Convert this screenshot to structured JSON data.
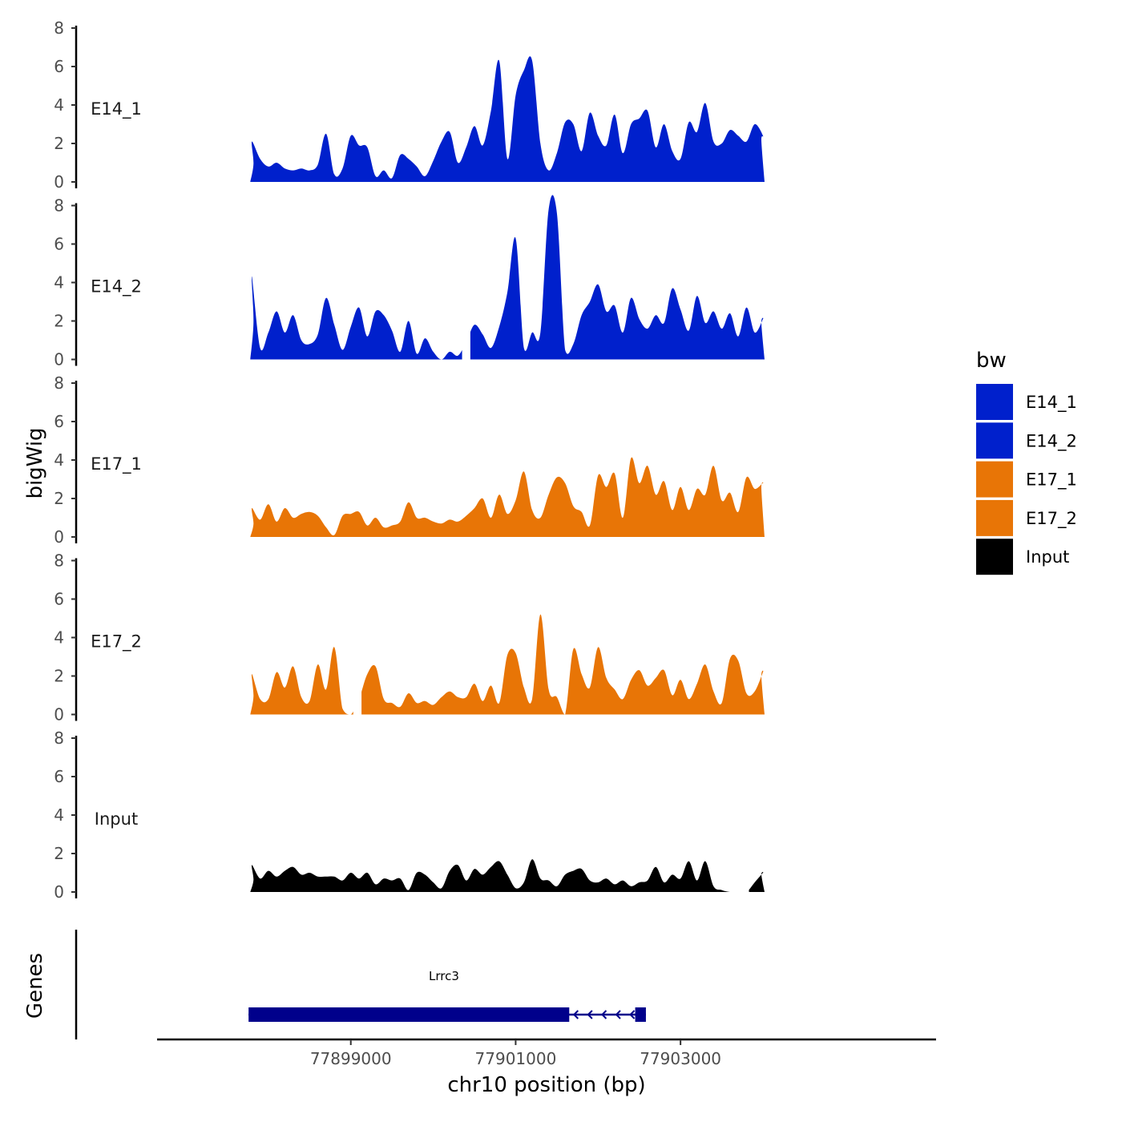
{
  "chart_data": {
    "type": "area",
    "xlabel": "chr10 position (bp)",
    "ylabel": "bigWig",
    "genes_label": "Genes",
    "xlim": [
      77896650,
      77906100
    ],
    "x_ticks": [
      77899000,
      77901000,
      77903000
    ],
    "x_tick_labels": [
      "77899000",
      "77901000",
      "77903000"
    ],
    "ylim": [
      0,
      8
    ],
    "y_ticks": [
      0,
      2,
      4,
      6,
      8
    ],
    "y_tick_labels": [
      "0",
      "2",
      "4",
      "6",
      "8"
    ],
    "legend": {
      "title": "bw",
      "placement": "right",
      "entries": [
        {
          "label": "E14_1",
          "color": "#0020CC"
        },
        {
          "label": "E14_2",
          "color": "#0020CC"
        },
        {
          "label": "E17_1",
          "color": "#E87506"
        },
        {
          "label": "E17_2",
          "color": "#E87506"
        },
        {
          "label": "Input",
          "color": "#000000"
        }
      ]
    },
    "series": [
      {
        "name": "E14_1",
        "color": "#0020CC",
        "x": [
          77897800,
          77897900,
          77898000,
          77898100,
          77898200,
          77898300,
          77898400,
          77898500,
          77898600,
          77898700,
          77898800,
          77898900,
          77899000,
          77899100,
          77899200,
          77899300,
          77899400,
          77899500,
          77899600,
          77899700,
          77899800,
          77899900,
          77900000,
          77900100,
          77900200,
          77900300,
          77900400,
          77900500,
          77900600,
          77900700,
          77900800,
          77900900,
          77901000,
          77901100,
          77901200,
          77901300,
          77901400,
          77901500,
          77901600,
          77901700,
          77901800,
          77901900,
          77902000,
          77902100,
          77902200,
          77902300,
          77902400,
          77902500,
          77902600,
          77902700,
          77902800,
          77902900,
          77903000,
          77903100,
          77903200,
          77903300,
          77903400,
          77903500,
          77903600,
          77903700,
          77903800,
          77903900,
          77904000
        ],
        "values": [
          2.1,
          1.2,
          0.8,
          1.0,
          0.7,
          0.6,
          0.7,
          0.6,
          0.9,
          2.5,
          0.4,
          0.7,
          2.4,
          1.9,
          1.8,
          0.3,
          0.6,
          0.2,
          1.4,
          1.2,
          0.8,
          0.3,
          1.1,
          2.1,
          2.6,
          1.0,
          1.8,
          2.9,
          1.9,
          3.7,
          6.3,
          1.2,
          4.5,
          5.8,
          6.3,
          2.0,
          0.6,
          1.5,
          3.1,
          3.0,
          1.6,
          3.6,
          2.4,
          1.9,
          3.5,
          1.5,
          3.0,
          3.3,
          3.7,
          1.8,
          3.0,
          1.6,
          1.2,
          3.1,
          2.6,
          4.1,
          2.1,
          2.0,
          2.7,
          2.4,
          2.1,
          3.0,
          2.4
        ],
        "gaps": []
      },
      {
        "name": "E14_2",
        "color": "#0020CC",
        "x": [
          77897800,
          77897900,
          77898000,
          77898100,
          77898200,
          77898300,
          77898400,
          77898500,
          77898600,
          77898700,
          77898800,
          77898900,
          77899000,
          77899100,
          77899200,
          77899300,
          77899400,
          77899500,
          77899600,
          77899700,
          77899800,
          77899900,
          77900000,
          77900100,
          77900200,
          77900300,
          77900400,
          77900500,
          77900600,
          77900700,
          77900800,
          77900900,
          77901000,
          77901100,
          77901200,
          77901300,
          77901400,
          77901500,
          77901600,
          77901700,
          77901800,
          77901900,
          77902000,
          77902100,
          77902200,
          77902300,
          77902400,
          77902500,
          77902600,
          77902700,
          77902800,
          77902900,
          77903000,
          77903100,
          77903200,
          77903300,
          77903400,
          77903500,
          77903600,
          77903700,
          77903800,
          77903900,
          77904000
        ],
        "values": [
          4.3,
          0.6,
          1.4,
          2.5,
          1.4,
          2.3,
          1.0,
          0.8,
          1.3,
          3.2,
          1.8,
          0.5,
          1.7,
          2.7,
          1.2,
          2.5,
          2.3,
          1.5,
          0.4,
          2.0,
          0.3,
          1.1,
          0.4,
          0.0,
          0.4,
          0.2,
          0.9,
          1.8,
          1.3,
          0.6,
          1.7,
          3.5,
          6.3,
          0.6,
          1.4,
          1.4,
          7.8,
          7.6,
          0.5,
          0.8,
          2.3,
          3.0,
          3.9,
          2.5,
          2.8,
          1.4,
          3.2,
          2.1,
          1.6,
          2.3,
          1.9,
          3.7,
          2.6,
          1.5,
          3.3,
          1.9,
          2.5,
          1.6,
          2.4,
          1.2,
          2.7,
          1.4,
          2.1
        ],
        "gaps": [
          [
            77900350,
            77900450
          ]
        ]
      },
      {
        "name": "E17_1",
        "color": "#E87506",
        "x": [
          77897800,
          77897900,
          77898000,
          77898100,
          77898200,
          77898300,
          77898400,
          77898500,
          77898600,
          77898700,
          77898800,
          77898900,
          77899000,
          77899100,
          77899200,
          77899300,
          77899400,
          77899500,
          77899600,
          77899700,
          77899800,
          77899900,
          77900000,
          77900100,
          77900200,
          77900300,
          77900400,
          77900500,
          77900600,
          77900700,
          77900800,
          77900900,
          77901000,
          77901100,
          77901200,
          77901300,
          77901400,
          77901500,
          77901600,
          77901700,
          77901800,
          77901900,
          77902000,
          77902100,
          77902200,
          77902300,
          77902400,
          77902500,
          77902600,
          77902700,
          77902800,
          77902900,
          77903000,
          77903100,
          77903200,
          77903300,
          77903400,
          77903500,
          77903600,
          77903700,
          77903800,
          77903900,
          77904000
        ],
        "values": [
          1.5,
          0.9,
          1.7,
          0.8,
          1.5,
          1.0,
          1.2,
          1.3,
          1.1,
          0.5,
          0.1,
          1.1,
          1.2,
          1.3,
          0.6,
          1.0,
          0.5,
          0.6,
          0.8,
          1.8,
          1.0,
          1.0,
          0.8,
          0.7,
          0.9,
          0.8,
          1.1,
          1.5,
          2.0,
          1.0,
          2.2,
          1.2,
          1.9,
          3.4,
          1.4,
          1.0,
          2.2,
          3.1,
          2.8,
          1.6,
          1.3,
          0.6,
          3.2,
          2.6,
          3.3,
          1.0,
          4.1,
          2.8,
          3.7,
          2.2,
          2.9,
          1.4,
          2.6,
          1.4,
          2.5,
          2.2,
          3.7,
          1.9,
          2.3,
          1.3,
          3.1,
          2.5,
          2.8
        ],
        "gaps": []
      },
      {
        "name": "E17_2",
        "color": "#E87506",
        "x": [
          77897800,
          77897900,
          77898000,
          77898100,
          77898200,
          77898300,
          77898400,
          77898500,
          77898600,
          77898700,
          77898800,
          77898900,
          77899000,
          77899100,
          77899200,
          77899300,
          77899400,
          77899500,
          77899600,
          77899700,
          77899800,
          77899900,
          77900000,
          77900100,
          77900200,
          77900300,
          77900400,
          77900500,
          77900600,
          77900700,
          77900800,
          77900900,
          77901000,
          77901100,
          77901200,
          77901300,
          77901400,
          77901500,
          77901600,
          77901700,
          77901800,
          77901900,
          77902000,
          77902100,
          77902200,
          77902300,
          77902400,
          77902500,
          77902600,
          77902700,
          77902800,
          77902900,
          77903000,
          77903100,
          77903200,
          77903300,
          77903400,
          77903500,
          77903600,
          77903700,
          77903800,
          77903900,
          77904000
        ],
        "values": [
          2.1,
          0.8,
          0.8,
          2.2,
          1.4,
          2.5,
          0.9,
          0.7,
          2.6,
          1.3,
          3.5,
          0.3,
          0.0,
          0.8,
          2.1,
          2.5,
          0.8,
          0.6,
          0.4,
          1.1,
          0.6,
          0.7,
          0.5,
          0.9,
          1.2,
          0.9,
          0.9,
          1.6,
          0.7,
          1.5,
          0.6,
          3.1,
          3.2,
          1.4,
          0.8,
          5.2,
          1.3,
          0.9,
          0.0,
          3.4,
          2.1,
          1.4,
          3.5,
          1.9,
          1.3,
          0.8,
          1.8,
          2.3,
          1.5,
          1.9,
          2.3,
          1.0,
          1.8,
          0.8,
          1.6,
          2.6,
          1.2,
          0.6,
          2.9,
          2.8,
          1.1,
          1.2,
          2.2
        ],
        "gaps": [
          [
            77899030,
            77899130
          ]
        ]
      },
      {
        "name": "Input",
        "color": "#000000",
        "x": [
          77897800,
          77897900,
          77898000,
          77898100,
          77898200,
          77898300,
          77898400,
          77898500,
          77898600,
          77898700,
          77898800,
          77898900,
          77899000,
          77899100,
          77899200,
          77899300,
          77899400,
          77899500,
          77899600,
          77899700,
          77899800,
          77899900,
          77900000,
          77900100,
          77900200,
          77900300,
          77900400,
          77900500,
          77900600,
          77900700,
          77900800,
          77900900,
          77901000,
          77901100,
          77901200,
          77901300,
          77901400,
          77901500,
          77901600,
          77901700,
          77901800,
          77901900,
          77902000,
          77902100,
          77902200,
          77902300,
          77902400,
          77902500,
          77902600,
          77902700,
          77902800,
          77902900,
          77903000,
          77903100,
          77903200,
          77903300,
          77903400,
          77903500,
          77903600,
          77903700,
          77903800,
          77903900,
          77904000
        ],
        "values": [
          1.4,
          0.7,
          1.1,
          0.8,
          1.1,
          1.3,
          0.9,
          1.0,
          0.8,
          0.8,
          0.8,
          0.6,
          1.0,
          0.7,
          1.0,
          0.4,
          0.7,
          0.6,
          0.7,
          0.1,
          1.0,
          0.9,
          0.5,
          0.2,
          1.1,
          1.4,
          0.6,
          1.2,
          0.9,
          1.3,
          1.6,
          0.9,
          0.2,
          0.5,
          1.7,
          0.7,
          0.6,
          0.3,
          0.9,
          1.1,
          1.2,
          0.6,
          0.5,
          0.7,
          0.4,
          0.6,
          0.3,
          0.5,
          0.6,
          1.3,
          0.5,
          0.9,
          0.7,
          1.6,
          0.6,
          1.6,
          0.3,
          0.1,
          0.0,
          0.0,
          0.0,
          0.5,
          1.0
        ],
        "gaps": [
          [
            77903720,
            77903830
          ]
        ]
      }
    ],
    "genes": [
      {
        "name": "Lrrc3",
        "strand": "-",
        "color": "#00008B",
        "start": 77897760,
        "end": 77902580,
        "exons": [
          [
            77897760,
            77901650
          ],
          [
            77902450,
            77902580
          ]
        ]
      }
    ]
  }
}
